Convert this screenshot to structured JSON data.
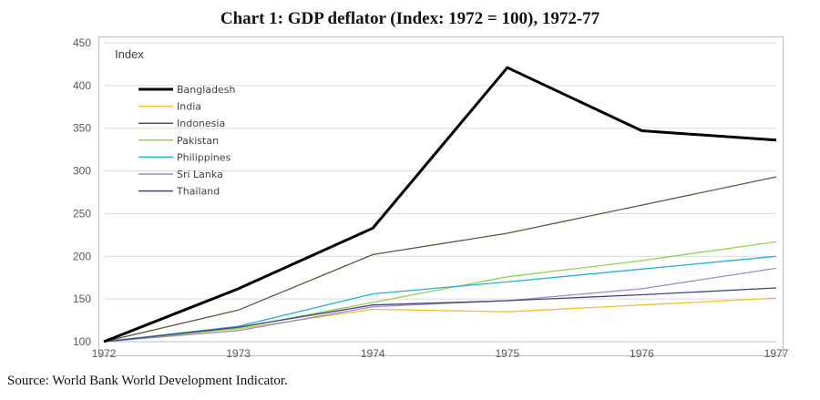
{
  "title": "Chart 1: GDP deflator (Index: 1972 = 100), 1972-77",
  "source": "Source: World Bank World Development Indicator.",
  "chart_data": {
    "type": "line",
    "title": "Chart 1: GDP deflator (Index: 1972 = 100), 1972-77",
    "xlabel": "",
    "ylabel": "Index",
    "x": [
      "1972",
      "1973",
      "1974",
      "1975",
      "1976",
      "1977"
    ],
    "ylim": [
      100,
      450
    ],
    "yticks": [
      100,
      150,
      200,
      250,
      300,
      350,
      400,
      450
    ],
    "grid": true,
    "legend": "top-left",
    "series": [
      {
        "name": "Bangladesh",
        "color": "#000000",
        "width": 3,
        "values": [
          100,
          162,
          233,
          421,
          347,
          336
        ]
      },
      {
        "name": "India",
        "color": "#f2c12e",
        "width": 1.3,
        "values": [
          100,
          115,
          138,
          135,
          143,
          151
        ]
      },
      {
        "name": "Indonesia",
        "color": "#5a5a3c",
        "width": 1.3,
        "values": [
          100,
          137,
          202,
          227,
          260,
          293
        ]
      },
      {
        "name": "Pakistan",
        "color": "#92d050",
        "width": 1.3,
        "values": [
          100,
          116,
          146,
          176,
          195,
          217
        ]
      },
      {
        "name": "Philippines",
        "color": "#21b2d8",
        "width": 1.3,
        "values": [
          100,
          118,
          156,
          170,
          185,
          200
        ]
      },
      {
        "name": "Sri Lanka",
        "color": "#a08cc8",
        "width": 1.3,
        "values": [
          100,
          113,
          141,
          148,
          162,
          186
        ]
      },
      {
        "name": "Thailand",
        "color": "#3b4a7a",
        "width": 1.3,
        "values": [
          100,
          117,
          143,
          148,
          155,
          163
        ]
      }
    ]
  }
}
